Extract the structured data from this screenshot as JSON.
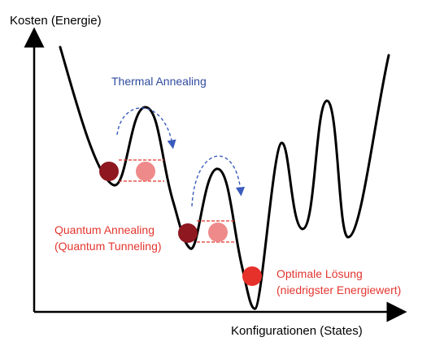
{
  "axes": {
    "y_label": "Kosten (Energie)",
    "x_label": "Konfigurationen (States)"
  },
  "annotations": {
    "thermal": "Thermal Annealing",
    "quantum_line1": "Quantum Annealing",
    "quantum_line2": "(Quantum Tunneling)",
    "optimal_line1": "Optimale Lösung",
    "optimal_line2": "(niedrigster Energiewert)"
  },
  "colors": {
    "curve": "#000000",
    "thermal_text": "#2e4a9e",
    "thermal_arrow": "#3b5bbd",
    "quantum_text": "#e3362f",
    "optimal_text": "#e3362f",
    "tunnel_line": "#e3362f",
    "ball_dark": "#8e1720",
    "ball_light": "#ef8a8a",
    "ball_optimal": "#e6312b"
  }
}
